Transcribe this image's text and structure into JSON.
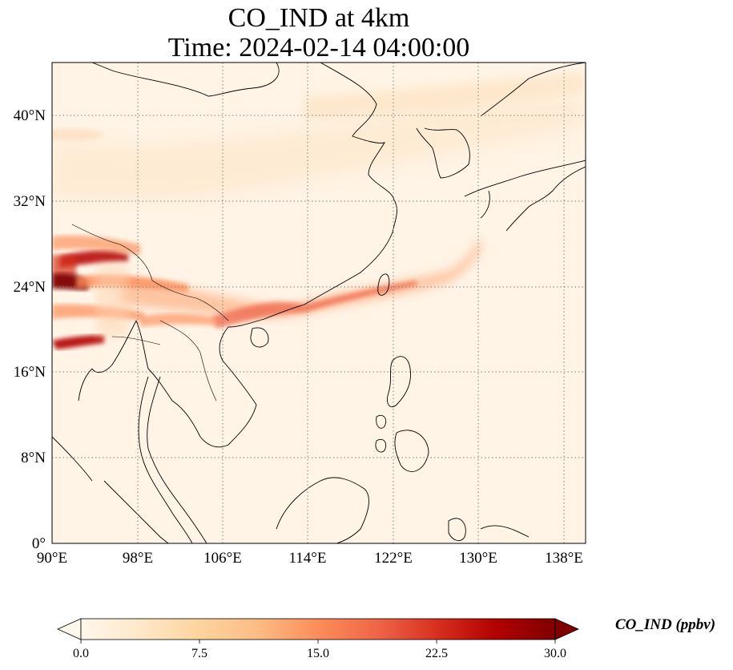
{
  "title": {
    "line1": "CO_IND at 4km",
    "line2": "Time: 2024-02-14 04:00:00"
  },
  "map": {
    "lon_range": [
      90,
      140
    ],
    "lat_range": [
      0,
      45
    ],
    "gridlines": "dotted",
    "x_ticks": [
      "90°E",
      "98°E",
      "106°E",
      "114°E",
      "122°E",
      "130°E",
      "138°E"
    ],
    "x_tick_values": [
      90,
      98,
      106,
      114,
      122,
      130,
      138
    ],
    "y_ticks": [
      "0°",
      "8°N",
      "16°N",
      "24°N",
      "32°N",
      "40°N"
    ],
    "y_tick_values": [
      0,
      8,
      16,
      24,
      32,
      40
    ]
  },
  "colorbar": {
    "label": "CO_IND (ppbv)",
    "ticks": [
      "0.0",
      "7.5",
      "15.0",
      "22.5",
      "30.0"
    ],
    "tick_values": [
      0,
      7.5,
      15,
      22.5,
      30
    ],
    "range": [
      0,
      30
    ],
    "extend": "both",
    "colormap": "OrRd",
    "colors": [
      "#fff7ec",
      "#fee8c8",
      "#fdd49e",
      "#fdbb84",
      "#fc8d59",
      "#ef6548",
      "#d7301f",
      "#b30000",
      "#7f0000"
    ]
  }
}
